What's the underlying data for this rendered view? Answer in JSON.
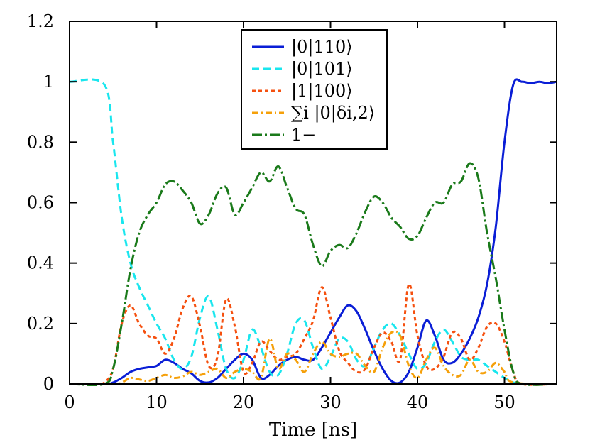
{
  "chart_data": {
    "type": "line",
    "xlabel": "Time [ns]",
    "ylabel": "",
    "xlim": [
      0,
      56
    ],
    "ylim": [
      0,
      1.2
    ],
    "xticks": [
      0,
      10,
      20,
      30,
      40,
      50
    ],
    "yticks": [
      0,
      0.2,
      0.4,
      0.6,
      0.8,
      1,
      1.2
    ],
    "ytick_labels": [
      "0",
      "0.2",
      "0.4",
      "0.6",
      "0.8",
      "1",
      "1.2"
    ],
    "grid": false,
    "legend_position": "top-center",
    "series": [
      {
        "name": "|0|110⟩",
        "color": "#0a1ed6",
        "dash": "solid",
        "x": [
          0,
          4,
          5,
          6,
          7,
          8,
          9,
          10,
          11,
          12,
          13,
          14,
          15,
          16,
          17,
          18,
          19,
          20,
          21,
          22,
          23,
          24,
          25,
          26,
          27,
          28,
          29,
          30,
          31,
          32,
          33,
          34,
          35,
          36,
          37,
          38,
          39,
          40,
          41,
          42,
          43,
          44,
          45,
          46,
          47,
          48,
          49,
          50,
          51,
          52,
          53,
          54,
          55,
          56
        ],
        "y": [
          0,
          0,
          0.005,
          0.02,
          0.04,
          0.05,
          0.055,
          0.06,
          0.08,
          0.07,
          0.05,
          0.035,
          0.01,
          0.005,
          0.02,
          0.05,
          0.08,
          0.1,
          0.08,
          0.02,
          0.03,
          0.06,
          0.08,
          0.09,
          0.08,
          0.08,
          0.12,
          0.17,
          0.22,
          0.26,
          0.24,
          0.18,
          0.11,
          0.05,
          0.01,
          0.005,
          0.04,
          0.12,
          0.21,
          0.16,
          0.08,
          0.07,
          0.1,
          0.15,
          0.22,
          0.33,
          0.52,
          0.8,
          0.99,
          1.0,
          0.995,
          1.0,
          0.995,
          1.0
        ]
      },
      {
        "name": "|0|101⟩",
        "color": "#19e6ee",
        "dash": "dashed",
        "x": [
          0,
          4,
          5,
          6,
          7,
          8,
          9,
          10,
          11,
          12,
          13,
          14,
          15,
          16,
          17,
          18,
          19,
          20,
          21,
          22,
          23,
          24,
          25,
          26,
          27,
          28,
          29,
          30,
          31,
          32,
          33,
          34,
          35,
          36,
          37,
          38,
          39,
          40,
          41,
          42,
          43,
          44,
          45,
          46,
          47,
          48,
          49,
          50,
          51,
          52,
          53,
          56
        ],
        "y": [
          1.0,
          0.99,
          0.8,
          0.55,
          0.4,
          0.32,
          0.26,
          0.2,
          0.15,
          0.08,
          0.05,
          0.09,
          0.22,
          0.29,
          0.18,
          0.05,
          0.02,
          0.08,
          0.18,
          0.12,
          0.04,
          0.03,
          0.1,
          0.2,
          0.21,
          0.12,
          0.05,
          0.09,
          0.15,
          0.14,
          0.08,
          0.06,
          0.12,
          0.18,
          0.2,
          0.16,
          0.1,
          0.05,
          0.07,
          0.14,
          0.18,
          0.14,
          0.09,
          0.08,
          0.08,
          0.06,
          0.04,
          0.02,
          0.005,
          0,
          0,
          0
        ]
      },
      {
        "name": "|1|100⟩",
        "color": "#f5500f",
        "dash": "dotted",
        "x": [
          0,
          3,
          4,
          5,
          6,
          7,
          8,
          9,
          10,
          11,
          12,
          13,
          14,
          15,
          16,
          17,
          18,
          19,
          20,
          21,
          22,
          23,
          24,
          25,
          26,
          27,
          28,
          29,
          30,
          31,
          32,
          33,
          34,
          35,
          36,
          37,
          38,
          39,
          40,
          41,
          42,
          43,
          44,
          45,
          46,
          47,
          48,
          49,
          50,
          51,
          52,
          56
        ],
        "y": [
          0,
          0,
          0.005,
          0.05,
          0.2,
          0.26,
          0.2,
          0.16,
          0.15,
          0.1,
          0.15,
          0.25,
          0.29,
          0.19,
          0.06,
          0.09,
          0.28,
          0.19,
          0.04,
          0.07,
          0.14,
          0.11,
          0.08,
          0.09,
          0.1,
          0.15,
          0.21,
          0.32,
          0.22,
          0.11,
          0.07,
          0.04,
          0.05,
          0.12,
          0.17,
          0.14,
          0.08,
          0.33,
          0.16,
          0.06,
          0.05,
          0.09,
          0.17,
          0.15,
          0.08,
          0.12,
          0.19,
          0.2,
          0.14,
          0.04,
          0,
          0
        ]
      },
      {
        "name": "∑i |0|δi,2⟩",
        "color": "#f5a00a",
        "dash": "dashdot",
        "x": [
          0,
          5,
          6,
          7,
          8,
          9,
          10,
          11,
          12,
          13,
          14,
          15,
          16,
          17,
          18,
          19,
          20,
          21,
          22,
          23,
          24,
          25,
          26,
          27,
          28,
          29,
          30,
          31,
          32,
          33,
          34,
          35,
          36,
          37,
          38,
          39,
          40,
          41,
          42,
          43,
          44,
          45,
          46,
          47,
          48,
          49,
          50,
          51,
          56
        ],
        "y": [
          0,
          0,
          0.005,
          0.02,
          0.015,
          0.01,
          0.02,
          0.03,
          0.02,
          0.025,
          0.04,
          0.03,
          0.04,
          0.05,
          0.02,
          0.04,
          0.05,
          0.04,
          0.02,
          0.15,
          0.05,
          0.1,
          0.08,
          0.04,
          0.1,
          0.14,
          0.1,
          0.09,
          0.1,
          0.1,
          0.06,
          0.04,
          0.12,
          0.17,
          0.16,
          0.06,
          0.02,
          0.08,
          0.12,
          0.06,
          0.03,
          0.03,
          0.08,
          0.04,
          0.04,
          0.07,
          0.04,
          0.005,
          0
        ]
      },
      {
        "name": "1−",
        "color": "#1a7a1a",
        "dash": "longdashdot",
        "x": [
          0,
          4,
          5,
          6,
          7,
          8,
          9,
          10,
          11,
          12,
          13,
          14,
          15,
          16,
          17,
          18,
          19,
          20,
          21,
          22,
          23,
          24,
          25,
          26,
          27,
          28,
          29,
          30,
          31,
          32,
          33,
          34,
          35,
          36,
          37,
          38,
          39,
          40,
          41,
          42,
          43,
          44,
          45,
          46,
          47,
          48,
          49,
          50,
          51,
          52,
          56
        ],
        "y": [
          0,
          0,
          0.05,
          0.2,
          0.38,
          0.5,
          0.56,
          0.6,
          0.66,
          0.67,
          0.64,
          0.6,
          0.53,
          0.56,
          0.63,
          0.65,
          0.56,
          0.6,
          0.65,
          0.7,
          0.67,
          0.72,
          0.65,
          0.58,
          0.56,
          0.46,
          0.39,
          0.44,
          0.46,
          0.45,
          0.5,
          0.57,
          0.62,
          0.6,
          0.55,
          0.52,
          0.48,
          0.49,
          0.55,
          0.6,
          0.6,
          0.66,
          0.67,
          0.73,
          0.68,
          0.5,
          0.35,
          0.18,
          0.04,
          0,
          0
        ]
      }
    ]
  }
}
